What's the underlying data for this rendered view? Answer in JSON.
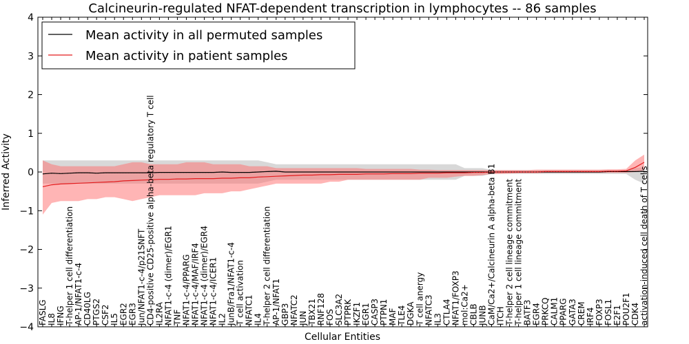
{
  "chart_data": {
    "type": "line",
    "title": "Calcineurin-regulated NFAT-dependent transcription in lymphocytes -- 86 samples",
    "xlabel": "Cellular Entities",
    "ylabel": "Inferred Activity",
    "ylim": [
      -4,
      4
    ],
    "yticks": [
      -4,
      -3,
      -2,
      -1,
      0,
      1,
      2,
      3,
      4
    ],
    "grid": false,
    "legend_position": "top-left",
    "categories": [
      "FASLG",
      "IL8",
      "IFNG",
      "T-helper 1 cell differentiation",
      "AP-1/NFAT1-c-4",
      "CD40LG",
      "PTGS2",
      "CSF2",
      "IL5",
      "EGR2",
      "EGR3",
      "Jun/NFAT1-c-4/p21SNFT",
      "CD4-positive CD25-positive alpha-beta regulatory T cell",
      "IL2RA",
      "NFAT1-c-4 (dimer)/EGR1",
      "TNF",
      "NFAT1-c-4/PPARG",
      "NFAT1-c-4/MAF/IRF4",
      "NFAT1-c-4 (dimer)/EGR4",
      "NFAT1-c-4/ICER1",
      "IL2",
      "JunB/Fra1/NFAT1-c-4",
      "T cell activation",
      "NFATC1",
      "IL4",
      "T-helper 2 cell differentiation",
      "AP-1/NFAT1",
      "GBP3",
      "NFATC2",
      "JUN",
      "TBX21",
      "RNF128",
      "FOS",
      "SLC3A2",
      "PTPRK",
      "IKZF1",
      "EGR1",
      "CASP3",
      "PTPN1",
      "MAF",
      "TLE4",
      "DGKA",
      "T cell anergy",
      "NFATC3",
      "IL3",
      "CTLA4",
      "NFAT1/FOXP3",
      "mol:Ca2+",
      "CBLB",
      "JUNB",
      "CaM/Ca2+/Calcineurin A alpha-beta B1",
      "ITCH",
      "T-helper 2 cell lineage commitment",
      "T-helper 1 cell lineage commitment",
      "BATF3",
      "EGR4",
      "PRKCQ",
      "CALM1",
      "PPARG",
      "GATA3",
      "CREM",
      "IRF4",
      "FOXP3",
      "FOSL1",
      "E2F1",
      "POU2F1",
      "CDK4",
      "activation-induced cell death of T cells"
    ],
    "series": [
      {
        "name": "Mean activity in all permuted samples",
        "color": "#000000",
        "values": [
          -0.05,
          -0.03,
          -0.04,
          -0.03,
          -0.02,
          -0.02,
          -0.03,
          -0.02,
          -0.02,
          -0.02,
          -0.02,
          -0.02,
          -0.02,
          -0.01,
          -0.01,
          -0.01,
          -0.01,
          -0.01,
          -0.01,
          -0.01,
          0.0,
          -0.01,
          -0.01,
          -0.01,
          0.0,
          0.01,
          0.02,
          0.0,
          0.0,
          0.0,
          0.0,
          0.0,
          0.0,
          0.0,
          0.0,
          0.0,
          0.0,
          0.0,
          0.0,
          0.0,
          0.0,
          0.0,
          0.0,
          0.0,
          0.0,
          0.0,
          0.0,
          0.0,
          0.0,
          0.0,
          0.0,
          0.0,
          0.0,
          0.0,
          0.0,
          0.0,
          0.0,
          0.0,
          0.0,
          0.0,
          0.0,
          0.0,
          0.0,
          0.01,
          0.01,
          0.01,
          0.01,
          0.02
        ],
        "band_lower": [
          -0.3,
          -0.3,
          -0.3,
          -0.3,
          -0.3,
          -0.3,
          -0.3,
          -0.3,
          -0.3,
          -0.3,
          -0.3,
          -0.3,
          -0.3,
          -0.3,
          -0.3,
          -0.3,
          -0.3,
          -0.3,
          -0.3,
          -0.3,
          -0.3,
          -0.3,
          -0.3,
          -0.3,
          -0.3,
          -0.25,
          -0.2,
          -0.2,
          -0.2,
          -0.2,
          -0.2,
          -0.2,
          -0.2,
          -0.2,
          -0.2,
          -0.2,
          -0.2,
          -0.2,
          -0.2,
          -0.2,
          -0.2,
          -0.2,
          -0.2,
          -0.2,
          -0.2,
          -0.2,
          -0.2,
          -0.1,
          -0.1,
          -0.1,
          -0.05,
          -0.05,
          -0.05,
          -0.05,
          -0.05,
          -0.05,
          -0.05,
          -0.05,
          -0.05,
          -0.05,
          -0.05,
          -0.05,
          -0.05,
          -0.05,
          -0.05,
          -0.05,
          -0.2,
          -0.3
        ],
        "band_upper": [
          0.3,
          0.3,
          0.3,
          0.3,
          0.3,
          0.3,
          0.3,
          0.3,
          0.3,
          0.3,
          0.3,
          0.3,
          0.3,
          0.3,
          0.3,
          0.3,
          0.3,
          0.3,
          0.3,
          0.3,
          0.3,
          0.3,
          0.3,
          0.3,
          0.3,
          0.25,
          0.2,
          0.2,
          0.2,
          0.2,
          0.2,
          0.2,
          0.2,
          0.2,
          0.2,
          0.2,
          0.2,
          0.2,
          0.2,
          0.2,
          0.2,
          0.2,
          0.2,
          0.2,
          0.2,
          0.2,
          0.2,
          0.1,
          0.1,
          0.1,
          0.05,
          0.05,
          0.05,
          0.05,
          0.05,
          0.05,
          0.05,
          0.05,
          0.05,
          0.05,
          0.05,
          0.05,
          0.05,
          0.05,
          0.05,
          0.05,
          0.1,
          0.12
        ]
      },
      {
        "name": "Mean activity in patient samples",
        "color": "#e31a1c",
        "values": [
          -0.38,
          -0.33,
          -0.31,
          -0.3,
          -0.29,
          -0.28,
          -0.27,
          -0.26,
          -0.25,
          -0.23,
          -0.22,
          -0.21,
          -0.2,
          -0.19,
          -0.19,
          -0.18,
          -0.18,
          -0.17,
          -0.17,
          -0.17,
          -0.16,
          -0.16,
          -0.15,
          -0.15,
          -0.13,
          -0.12,
          -0.11,
          -0.1,
          -0.09,
          -0.08,
          -0.08,
          -0.07,
          -0.07,
          -0.06,
          -0.06,
          -0.06,
          -0.05,
          -0.05,
          -0.05,
          -0.04,
          -0.04,
          -0.04,
          -0.03,
          -0.03,
          -0.03,
          -0.02,
          -0.02,
          -0.02,
          -0.01,
          -0.01,
          0.0,
          0.0,
          0.0,
          0.0,
          0.0,
          0.0,
          0.01,
          0.01,
          0.01,
          0.01,
          0.01,
          0.01,
          0.01,
          0.02,
          0.02,
          0.03,
          0.12,
          0.25
        ],
        "band_lower": [
          -1.1,
          -0.8,
          -0.75,
          -0.75,
          -0.75,
          -0.7,
          -0.7,
          -0.65,
          -0.65,
          -0.7,
          -0.75,
          -0.7,
          -0.65,
          -0.6,
          -0.6,
          -0.6,
          -0.6,
          -0.6,
          -0.55,
          -0.55,
          -0.55,
          -0.5,
          -0.5,
          -0.45,
          -0.4,
          -0.35,
          -0.3,
          -0.3,
          -0.3,
          -0.3,
          -0.3,
          -0.3,
          -0.25,
          -0.25,
          -0.2,
          -0.2,
          -0.2,
          -0.2,
          -0.2,
          -0.2,
          -0.2,
          -0.2,
          -0.2,
          -0.15,
          -0.15,
          -0.15,
          -0.12,
          -0.1,
          -0.1,
          -0.08,
          -0.05,
          -0.05,
          -0.04,
          -0.03,
          -0.03,
          -0.03,
          -0.02,
          -0.02,
          -0.02,
          -0.02,
          -0.02,
          -0.02,
          -0.02,
          -0.02,
          -0.02,
          -0.02,
          0.0,
          0.05
        ],
        "band_upper": [
          0.3,
          0.2,
          0.15,
          0.15,
          0.15,
          0.15,
          0.15,
          0.15,
          0.15,
          0.2,
          0.25,
          0.25,
          0.2,
          0.2,
          0.2,
          0.2,
          0.25,
          0.25,
          0.25,
          0.2,
          0.2,
          0.2,
          0.2,
          0.15,
          0.15,
          0.15,
          0.1,
          0.1,
          0.1,
          0.1,
          0.1,
          0.1,
          0.1,
          0.1,
          0.1,
          0.1,
          0.08,
          0.08,
          0.08,
          0.08,
          0.08,
          0.08,
          0.06,
          0.06,
          0.05,
          0.05,
          0.05,
          0.05,
          0.05,
          0.05,
          0.05,
          0.05,
          0.05,
          0.05,
          0.05,
          0.06,
          0.06,
          0.06,
          0.06,
          0.06,
          0.06,
          0.06,
          0.06,
          0.07,
          0.07,
          0.08,
          0.3,
          0.45
        ]
      }
    ]
  }
}
